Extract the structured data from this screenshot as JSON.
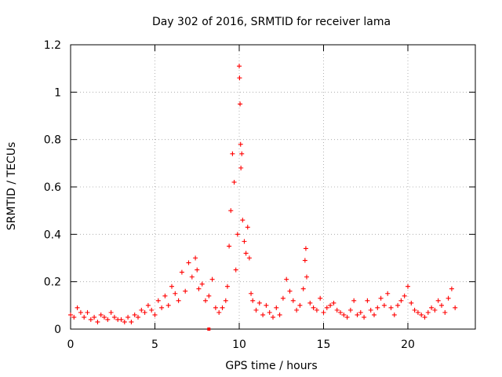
{
  "chart_data": {
    "type": "scatter",
    "title": "Day 302 of 2016, SRMTID for receiver lama",
    "xlabel": "GPS time / hours",
    "ylabel": "SRMTID / TECUs",
    "xlim": [
      0,
      24
    ],
    "ylim": [
      0,
      1.2
    ],
    "xticks": [
      0,
      5,
      10,
      15,
      20
    ],
    "xtick_labels": [
      "0",
      "5",
      "10",
      "15",
      "20"
    ],
    "yticks": [
      0,
      0.2,
      0.4,
      0.6,
      0.8,
      1.0,
      1.2
    ],
    "ytick_labels": [
      "0",
      "0.2",
      "0.4",
      "0.6",
      "0.8",
      "1",
      "1.2"
    ],
    "grid": true,
    "marker": "+",
    "series_color": "#ff0000",
    "series": [
      {
        "name": "SRMTID",
        "x": [
          0.0,
          0.2,
          0.4,
          0.6,
          0.8,
          1.0,
          1.2,
          1.4,
          1.6,
          1.8,
          2.0,
          2.2,
          2.4,
          2.6,
          2.8,
          3.0,
          3.2,
          3.4,
          3.6,
          3.8,
          4.0,
          4.2,
          4.4,
          4.6,
          4.8,
          5.0,
          5.2,
          5.4,
          5.6,
          5.8,
          6.0,
          6.2,
          6.4,
          6.6,
          6.8,
          7.0,
          7.2,
          7.4,
          7.5,
          7.6,
          7.8,
          8.0,
          8.2,
          8.4,
          8.6,
          8.8,
          9.0,
          9.2,
          9.3,
          9.4,
          9.5,
          9.6,
          9.7,
          9.8,
          9.9,
          10.0,
          10.02,
          10.05,
          10.08,
          10.1,
          10.15,
          10.2,
          10.3,
          10.4,
          10.5,
          10.6,
          10.7,
          10.8,
          11.0,
          11.2,
          11.4,
          11.6,
          11.8,
          12.0,
          12.2,
          12.4,
          12.6,
          12.8,
          13.0,
          13.2,
          13.4,
          13.6,
          13.8,
          13.9,
          13.95,
          14.0,
          14.2,
          14.4,
          14.6,
          14.8,
          15.0,
          15.2,
          15.4,
          15.6,
          15.8,
          16.0,
          16.2,
          16.4,
          16.6,
          16.8,
          17.0,
          17.2,
          17.4,
          17.6,
          17.8,
          18.0,
          18.2,
          18.4,
          18.6,
          18.8,
          19.0,
          19.2,
          19.4,
          19.6,
          19.8,
          20.0,
          20.2,
          20.4,
          20.6,
          20.8,
          21.0,
          21.2,
          21.4,
          21.6,
          21.8,
          22.0,
          22.2,
          22.4,
          22.6,
          22.8
        ],
        "y": [
          0.06,
          0.05,
          0.09,
          0.07,
          0.05,
          0.07,
          0.04,
          0.05,
          0.03,
          0.06,
          0.05,
          0.04,
          0.07,
          0.05,
          0.04,
          0.04,
          0.03,
          0.05,
          0.03,
          0.06,
          0.05,
          0.08,
          0.07,
          0.1,
          0.08,
          0.06,
          0.12,
          0.09,
          0.14,
          0.1,
          0.18,
          0.15,
          0.12,
          0.24,
          0.16,
          0.28,
          0.22,
          0.3,
          0.25,
          0.17,
          0.19,
          0.12,
          0.14,
          0.21,
          0.09,
          0.07,
          0.09,
          0.12,
          0.18,
          0.35,
          0.5,
          0.74,
          0.62,
          0.25,
          0.4,
          1.11,
          1.06,
          0.95,
          0.78,
          0.68,
          0.74,
          0.46,
          0.37,
          0.32,
          0.43,
          0.3,
          0.15,
          0.12,
          0.08,
          0.11,
          0.06,
          0.1,
          0.07,
          0.05,
          0.09,
          0.06,
          0.13,
          0.21,
          0.16,
          0.12,
          0.08,
          0.1,
          0.17,
          0.29,
          0.34,
          0.22,
          0.11,
          0.09,
          0.08,
          0.13,
          0.07,
          0.09,
          0.1,
          0.11,
          0.08,
          0.07,
          0.06,
          0.05,
          0.08,
          0.12,
          0.06,
          0.07,
          0.05,
          0.12,
          0.08,
          0.06,
          0.09,
          0.13,
          0.1,
          0.15,
          0.09,
          0.06,
          0.1,
          0.12,
          0.14,
          0.18,
          0.11,
          0.08,
          0.07,
          0.06,
          0.05,
          0.07,
          0.09,
          0.08,
          0.12,
          0.1,
          0.07,
          0.13,
          0.17,
          0.09
        ]
      }
    ],
    "extra_marks": [
      {
        "x": 8.2,
        "y": 0.0,
        "marker": "square"
      }
    ]
  }
}
